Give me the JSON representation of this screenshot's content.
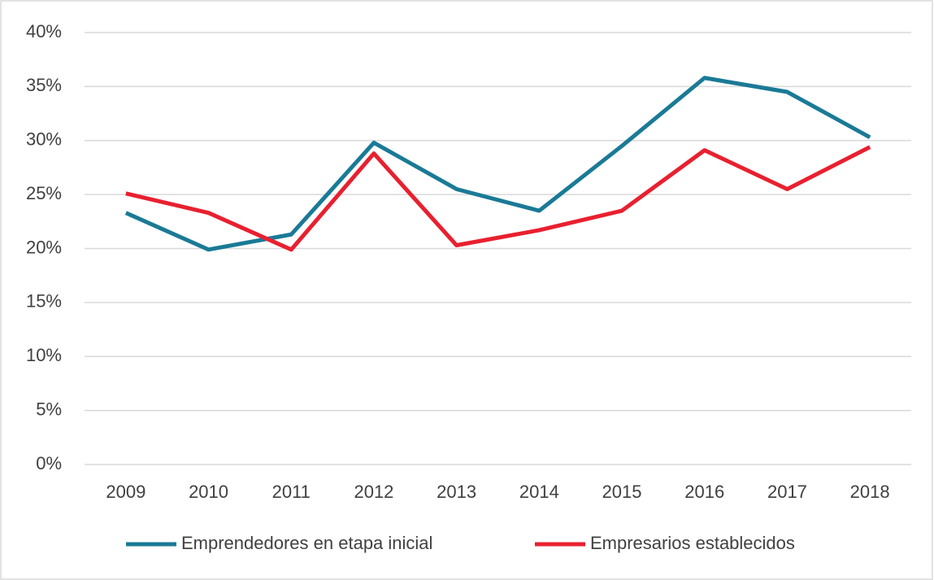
{
  "chart_data": {
    "type": "line",
    "categories": [
      "2009",
      "2010",
      "2011",
      "2012",
      "2013",
      "2014",
      "2015",
      "2016",
      "2017",
      "2018"
    ],
    "series": [
      {
        "name": "Emprendedores en etapa inicial",
        "color": "#1a7a96",
        "values": [
          23.3,
          19.9,
          21.3,
          29.8,
          25.5,
          23.5,
          29.5,
          35.8,
          34.5,
          30.3
        ]
      },
      {
        "name": "Empresarios establecidos",
        "color": "#e8202f",
        "values": [
          25.1,
          23.3,
          19.9,
          28.8,
          20.3,
          21.7,
          23.5,
          29.1,
          25.5,
          29.4
        ]
      }
    ],
    "ylim": [
      0,
      40
    ],
    "yticks": [
      {
        "value": 0,
        "label": "0%"
      },
      {
        "value": 5,
        "label": "5%"
      },
      {
        "value": 10,
        "label": "10%"
      },
      {
        "value": 15,
        "label": "15%"
      },
      {
        "value": 20,
        "label": "20%"
      },
      {
        "value": 25,
        "label": "25%"
      },
      {
        "value": 30,
        "label": "30%"
      },
      {
        "value": 35,
        "label": "35%"
      },
      {
        "value": 40,
        "label": "40%"
      }
    ],
    "grid": true,
    "legend": "bottom"
  }
}
